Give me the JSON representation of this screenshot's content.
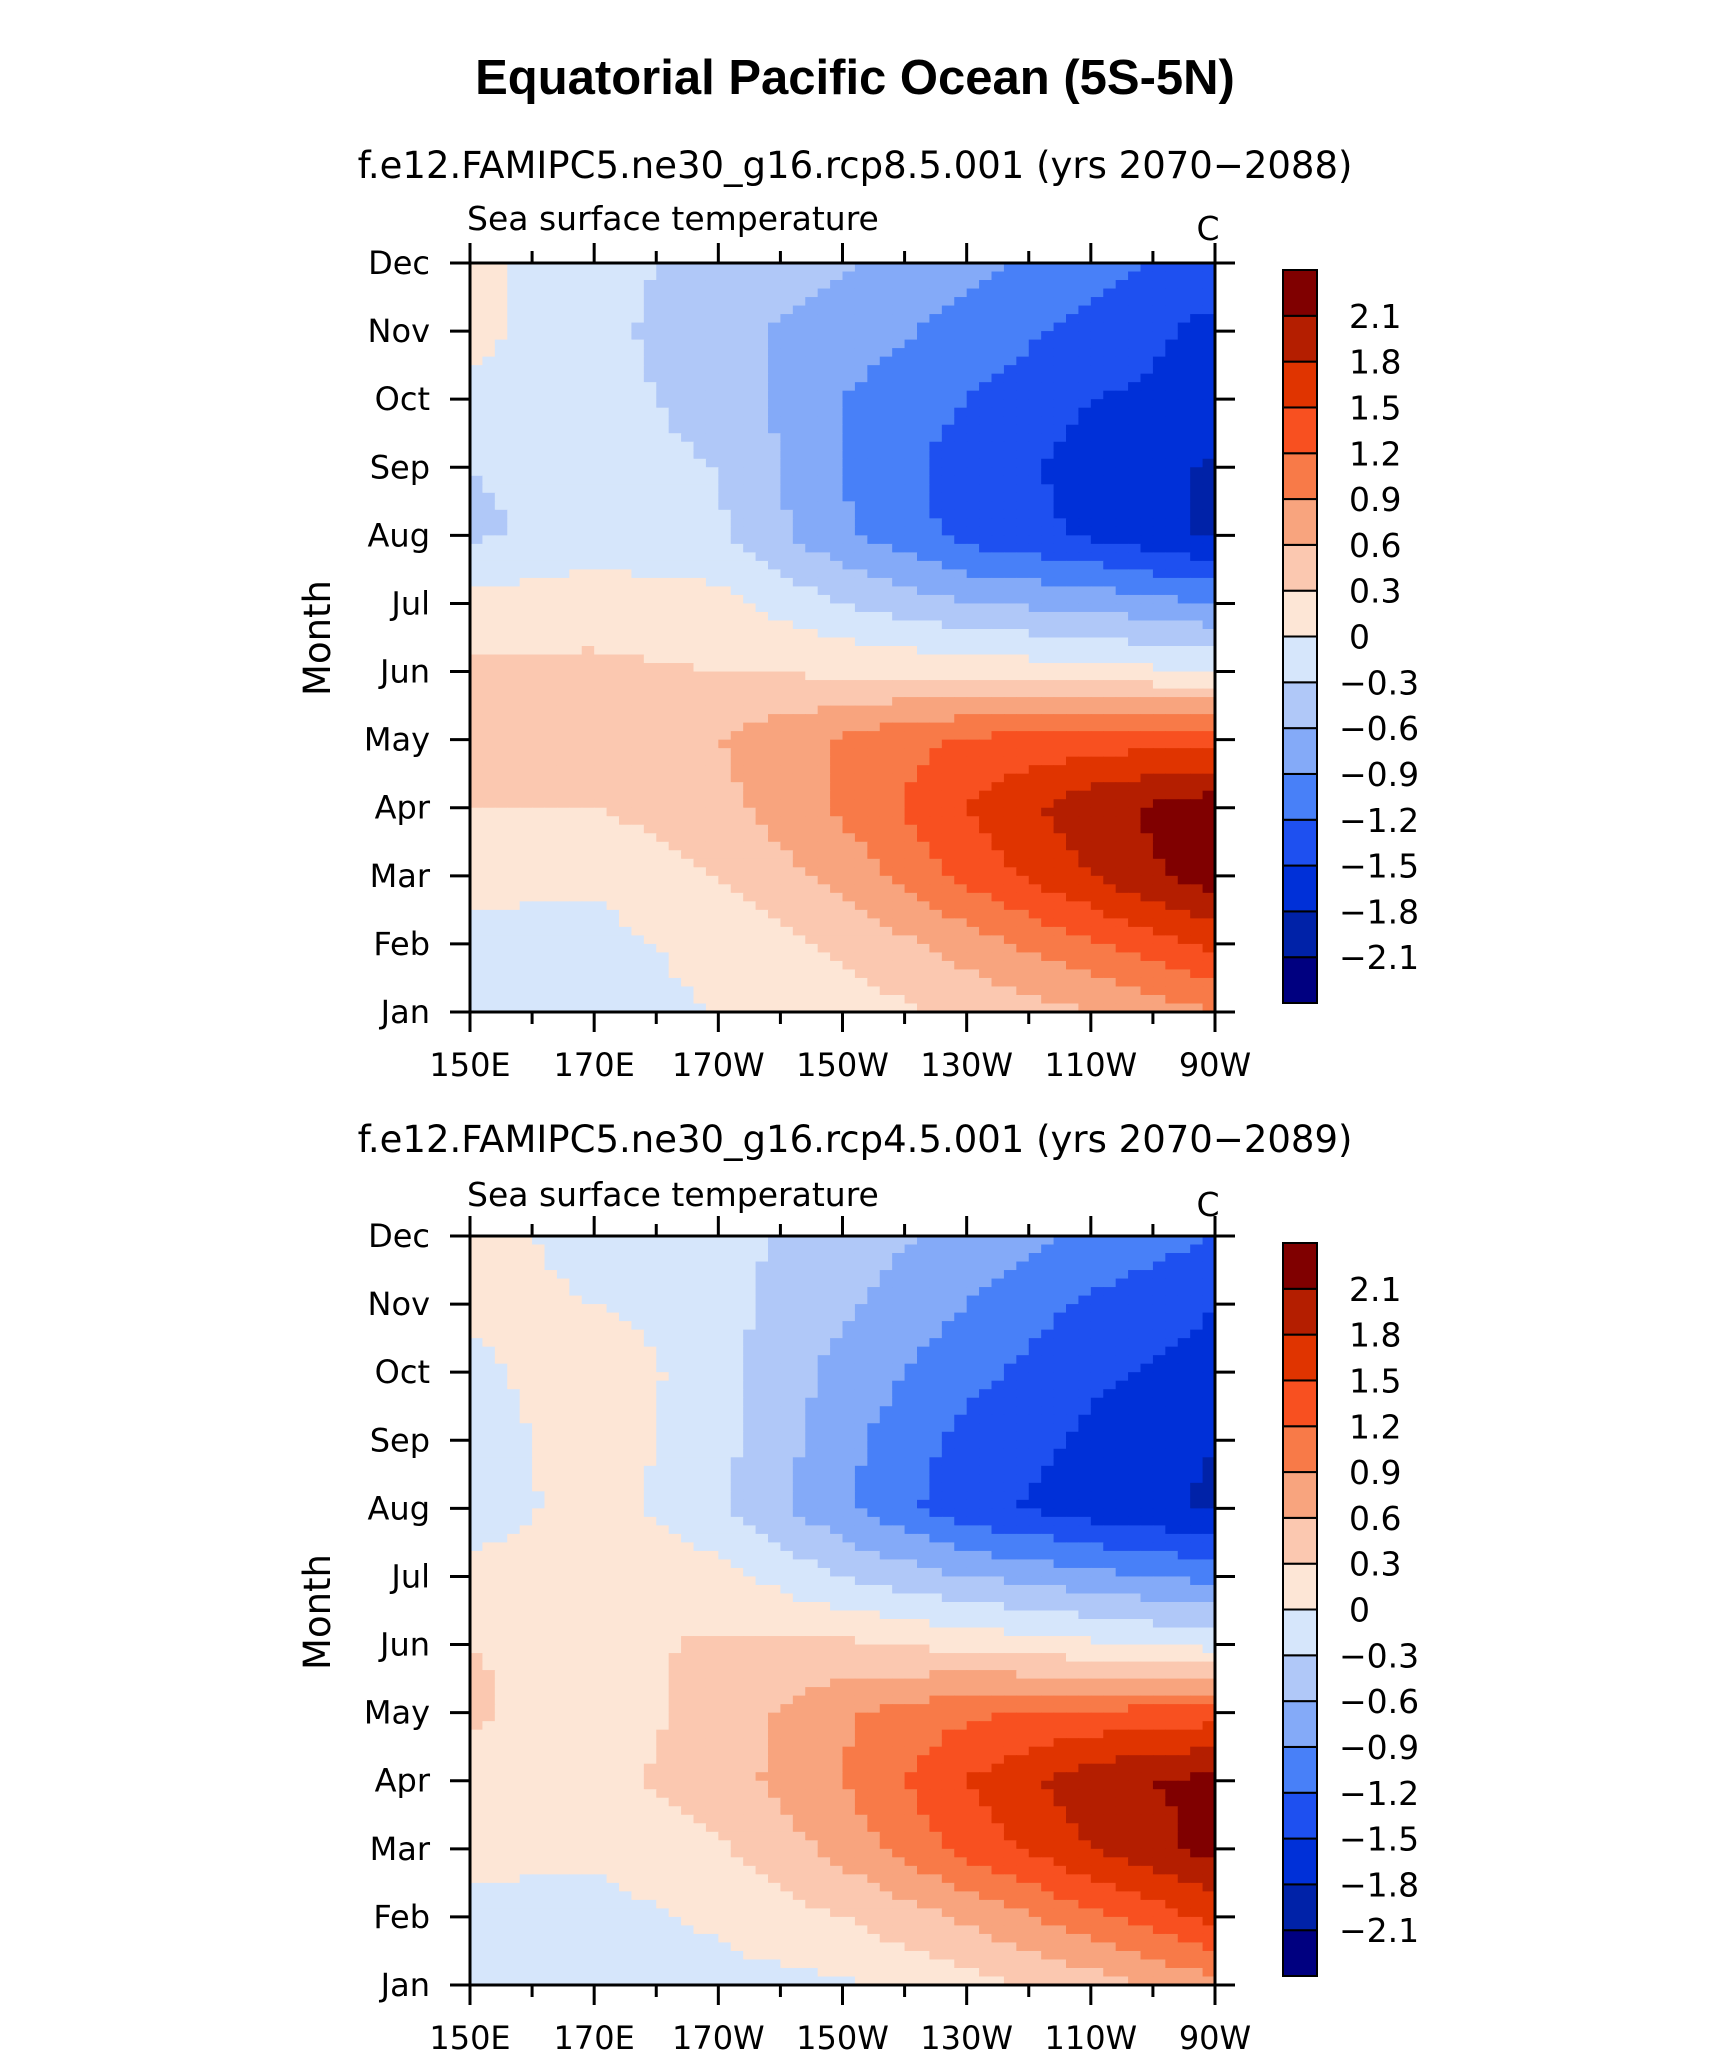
{
  "title": "Equatorial Pacific Ocean (5S-5N)",
  "levels": [
    -2.1,
    -1.8,
    -1.5,
    -1.2,
    -0.9,
    -0.6,
    -0.3,
    0,
    0.3,
    0.6,
    0.9,
    1.2,
    1.5,
    1.8,
    2.1
  ],
  "level_labels": [
    "2.1",
    "1.8",
    "1.5",
    "1.2",
    "0.9",
    "0.6",
    "0.3",
    "0",
    "−0.3",
    "−0.6",
    "−0.9",
    "−1.2",
    "−1.5",
    "−1.8",
    "−2.1"
  ],
  "colors": [
    "#000080",
    "#0022a8",
    "#0030d8",
    "#1e50f0",
    "#4880f8",
    "#84aaf8",
    "#b0c8f8",
    "#d6e6fb",
    "#fde6d6",
    "#fbc8b0",
    "#f8a47e",
    "#f87a48",
    "#f85020",
    "#e03400",
    "#b41e00",
    "#800000"
  ],
  "chart_data": [
    {
      "type": "heatmap",
      "title": "f.e12.FAMIPC5.ne30_g16.rcp8.5.001 (yrs 2070−2088)",
      "variable": "Sea surface temperature",
      "units": "C",
      "ylabel": "Month",
      "x": [
        "150E",
        "170E",
        "170W",
        "150W",
        "130W",
        "110W",
        "90W"
      ],
      "x_lon": [
        150,
        170,
        190,
        210,
        230,
        250,
        270
      ],
      "y": [
        "Jan",
        "Feb",
        "Mar",
        "Apr",
        "May",
        "Jun",
        "Jul",
        "Aug",
        "Sep",
        "Oct",
        "Nov",
        "Dec"
      ],
      "values": [
        [
          -0.1,
          -0.1,
          0.0,
          0.15,
          0.35,
          0.6,
          0.9
        ],
        [
          -0.1,
          -0.1,
          0.1,
          0.35,
          0.75,
          1.15,
          1.6
        ],
        [
          0.1,
          0.05,
          0.3,
          0.7,
          1.3,
          1.8,
          2.3
        ],
        [
          0.3,
          0.3,
          0.5,
          0.95,
          1.5,
          2.0,
          2.3
        ],
        [
          0.35,
          0.4,
          0.6,
          0.95,
          1.25,
          1.35,
          1.4
        ],
        [
          0.35,
          0.35,
          0.3,
          0.25,
          0.2,
          0.1,
          0.0
        ],
        [
          0.1,
          0.2,
          0.1,
          -0.3,
          -0.6,
          -0.7,
          -0.9
        ],
        [
          -0.35,
          -0.2,
          -0.25,
          -0.85,
          -1.3,
          -1.55,
          -1.85
        ],
        [
          -0.3,
          -0.2,
          -0.3,
          -0.9,
          -1.35,
          -1.6,
          -1.85
        ],
        [
          -0.1,
          -0.2,
          -0.4,
          -0.9,
          -1.2,
          -1.5,
          -1.6
        ],
        [
          0.1,
          -0.2,
          -0.5,
          -0.75,
          -1.0,
          -1.3,
          -1.6
        ],
        [
          0.1,
          -0.2,
          -0.4,
          -0.55,
          -0.8,
          -1.1,
          -1.3
        ]
      ]
    },
    {
      "type": "heatmap",
      "title": "f.e12.FAMIPC5.ne30_g16.rcp4.5.001 (yrs 2070−2089)",
      "variable": "Sea surface temperature",
      "units": "C",
      "ylabel": "Month",
      "x": [
        "150E",
        "170E",
        "170W",
        "150W",
        "130W",
        "110W",
        "90W"
      ],
      "x_lon": [
        150,
        170,
        190,
        210,
        230,
        250,
        270
      ],
      "y": [
        "Jan",
        "Feb",
        "Mar",
        "Apr",
        "May",
        "Jun",
        "Jul",
        "Aug",
        "Sep",
        "Oct",
        "Nov",
        "Dec"
      ],
      "values": [
        [
          -0.1,
          -0.1,
          -0.1,
          -0.05,
          0.2,
          0.45,
          0.8
        ],
        [
          -0.1,
          -0.1,
          0.05,
          0.3,
          0.65,
          1.1,
          1.6
        ],
        [
          0.1,
          0.05,
          0.25,
          0.7,
          1.3,
          1.8,
          2.2
        ],
        [
          0.2,
          0.2,
          0.45,
          0.9,
          1.5,
          2.0,
          2.2
        ],
        [
          0.35,
          0.15,
          0.4,
          0.85,
          1.15,
          1.25,
          1.35
        ],
        [
          0.3,
          0.2,
          0.35,
          0.35,
          0.2,
          0.05,
          -0.1
        ],
        [
          0.1,
          0.25,
          0.1,
          -0.3,
          -0.6,
          -0.8,
          -1.0
        ],
        [
          -0.2,
          0.15,
          -0.25,
          -0.85,
          -1.4,
          -1.65,
          -1.85
        ],
        [
          -0.2,
          0.2,
          -0.2,
          -0.8,
          -1.3,
          -1.55,
          -1.8
        ],
        [
          -0.1,
          0.25,
          -0.2,
          -0.7,
          -1.1,
          -1.45,
          -1.6
        ],
        [
          0.1,
          0.0,
          -0.2,
          -0.55,
          -0.9,
          -1.25,
          -1.5
        ],
        [
          0.1,
          -0.1,
          -0.2,
          -0.45,
          -0.7,
          -0.95,
          -1.2
        ]
      ]
    }
  ]
}
